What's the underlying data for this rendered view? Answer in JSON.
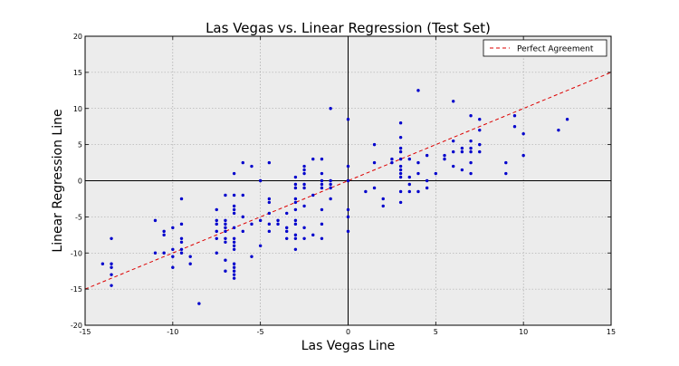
{
  "chart_data": {
    "type": "scatter",
    "title": "Las Vegas vs. Linear Regression (Test Set)",
    "xlabel": "Las Vegas Line",
    "ylabel": "Linear Regression Line",
    "xlim": [
      -15,
      15
    ],
    "ylim": [
      -20,
      20
    ],
    "xticks": [
      -15,
      -10,
      -5,
      0,
      5,
      10,
      15
    ],
    "yticks": [
      -20,
      -15,
      -10,
      -5,
      0,
      5,
      10,
      15,
      20
    ],
    "grid": true,
    "legend": {
      "placement": "top-right",
      "entries": [
        "Perfect Agreement"
      ]
    },
    "colors": {
      "points": "#0000cc",
      "reference_line": "#dd0000",
      "plot_background": "#ececec"
    },
    "reference_line": {
      "name": "Perfect Agreement",
      "x": [
        -15,
        15
      ],
      "y": [
        -15,
        15
      ],
      "style": "dashed"
    },
    "series": [
      {
        "points": [
          [
            -14,
            -11.5
          ],
          [
            -13.5,
            -8
          ],
          [
            -13.5,
            -11.5
          ],
          [
            -13.5,
            -12
          ],
          [
            -13.5,
            -13
          ],
          [
            -13.5,
            -14.5
          ],
          [
            -11,
            -5.5
          ],
          [
            -11,
            -10
          ],
          [
            -10.5,
            -7
          ],
          [
            -10.5,
            -7.5
          ],
          [
            -10.5,
            -10
          ],
          [
            -10,
            -6.5
          ],
          [
            -10,
            -9.5
          ],
          [
            -10,
            -10.5
          ],
          [
            -10,
            -12
          ],
          [
            -9.5,
            -2.5
          ],
          [
            -9.5,
            -6
          ],
          [
            -9.5,
            -8
          ],
          [
            -9.5,
            -8.5
          ],
          [
            -9.5,
            -9.5
          ],
          [
            -9.5,
            -10
          ],
          [
            -9,
            -10.5
          ],
          [
            -9,
            -11.5
          ],
          [
            -8.5,
            -17
          ],
          [
            -7.5,
            -4
          ],
          [
            -7.5,
            -5.5
          ],
          [
            -7.5,
            -6
          ],
          [
            -7.5,
            -7
          ],
          [
            -7.5,
            -8
          ],
          [
            -7.5,
            -10
          ],
          [
            -7,
            -2
          ],
          [
            -7,
            -5.5
          ],
          [
            -7,
            -6
          ],
          [
            -7,
            -6.5
          ],
          [
            -7,
            -7
          ],
          [
            -7,
            -8
          ],
          [
            -7,
            -8.5
          ],
          [
            -7,
            -11
          ],
          [
            -7,
            -12.5
          ],
          [
            -6.5,
            1
          ],
          [
            -6.5,
            -2
          ],
          [
            -6.5,
            -3.5
          ],
          [
            -6.5,
            -4
          ],
          [
            -6.5,
            -4.5
          ],
          [
            -6.5,
            -6.5
          ],
          [
            -6.5,
            -8
          ],
          [
            -6.5,
            -8.5
          ],
          [
            -6.5,
            -9
          ],
          [
            -6.5,
            -9.5
          ],
          [
            -6.5,
            -11.5
          ],
          [
            -6.5,
            -12
          ],
          [
            -6.5,
            -12.5
          ],
          [
            -6.5,
            -13
          ],
          [
            -6.5,
            -13.5
          ],
          [
            -6,
            2.5
          ],
          [
            -6,
            -2
          ],
          [
            -6,
            -5
          ],
          [
            -6,
            -7
          ],
          [
            -5.5,
            2
          ],
          [
            -5.5,
            -6
          ],
          [
            -5.5,
            -10.5
          ],
          [
            -5,
            0
          ],
          [
            -5,
            -5.5
          ],
          [
            -5,
            -9
          ],
          [
            -4.5,
            2.5
          ],
          [
            -4.5,
            -2.5
          ],
          [
            -4.5,
            -3
          ],
          [
            -4.5,
            -4.5
          ],
          [
            -4.5,
            -6
          ],
          [
            -4.5,
            -7
          ],
          [
            -4,
            -5.5
          ],
          [
            -4,
            -6
          ],
          [
            -3.5,
            -4.5
          ],
          [
            -3.5,
            -6.5
          ],
          [
            -3.5,
            -7
          ],
          [
            -3.5,
            -8
          ],
          [
            -3,
            0.5
          ],
          [
            -3,
            -0.5
          ],
          [
            -3,
            -1
          ],
          [
            -3,
            -2.5
          ],
          [
            -3,
            -3
          ],
          [
            -3,
            -4
          ],
          [
            -3,
            -5.5
          ],
          [
            -3,
            -6
          ],
          [
            -3,
            -7.5
          ],
          [
            -3,
            -8
          ],
          [
            -3,
            -9.5
          ],
          [
            -2.5,
            1
          ],
          [
            -2.5,
            1.5
          ],
          [
            -2.5,
            2
          ],
          [
            -2.5,
            -0.5
          ],
          [
            -2.5,
            -1
          ],
          [
            -2.5,
            -3.5
          ],
          [
            -2.5,
            -6.5
          ],
          [
            -2.5,
            -8
          ],
          [
            -2,
            3
          ],
          [
            -2,
            -2
          ],
          [
            -2,
            -7.5
          ],
          [
            -1.5,
            3
          ],
          [
            -1.5,
            1
          ],
          [
            -1.5,
            0
          ],
          [
            -1.5,
            -0.5
          ],
          [
            -1.5,
            -1
          ],
          [
            -1.5,
            -4
          ],
          [
            -1.5,
            -6
          ],
          [
            -1.5,
            -8
          ],
          [
            -1,
            10
          ],
          [
            -1,
            0
          ],
          [
            -1,
            -0.5
          ],
          [
            -1,
            -1
          ],
          [
            -1,
            -2.5
          ],
          [
            0,
            8.5
          ],
          [
            0,
            2
          ],
          [
            0,
            0
          ],
          [
            0,
            -4
          ],
          [
            0,
            -5
          ],
          [
            0,
            -7
          ],
          [
            1,
            -1.5
          ],
          [
            1.5,
            5
          ],
          [
            1.5,
            2.5
          ],
          [
            1.5,
            -1
          ],
          [
            2,
            -2.5
          ],
          [
            2,
            -3.5
          ],
          [
            2.5,
            2.5
          ],
          [
            2.5,
            3
          ],
          [
            3,
            8
          ],
          [
            3,
            6
          ],
          [
            3,
            4.5
          ],
          [
            3,
            4
          ],
          [
            3,
            3
          ],
          [
            3,
            2
          ],
          [
            3,
            1.5
          ],
          [
            3,
            1
          ],
          [
            3,
            0.5
          ],
          [
            3,
            -1.5
          ],
          [
            3,
            -3
          ],
          [
            3.5,
            3
          ],
          [
            3.5,
            0.5
          ],
          [
            3.5,
            -0.5
          ],
          [
            3.5,
            -1.5
          ],
          [
            4,
            12.5
          ],
          [
            4,
            2.5
          ],
          [
            4,
            1
          ],
          [
            4,
            -1.5
          ],
          [
            4.5,
            3.5
          ],
          [
            4.5,
            0
          ],
          [
            4.5,
            -1
          ],
          [
            5,
            1
          ],
          [
            5.5,
            3.5
          ],
          [
            5.5,
            3
          ],
          [
            6,
            11
          ],
          [
            6,
            5.5
          ],
          [
            6,
            4
          ],
          [
            6,
            2
          ],
          [
            6.5,
            4.5
          ],
          [
            6.5,
            4
          ],
          [
            6.5,
            1.5
          ],
          [
            7,
            9
          ],
          [
            7,
            5.5
          ],
          [
            7,
            4.5
          ],
          [
            7,
            4
          ],
          [
            7,
            2.5
          ],
          [
            7,
            1
          ],
          [
            7.5,
            8.5
          ],
          [
            7.5,
            7
          ],
          [
            7.5,
            5
          ],
          [
            7.5,
            4
          ],
          [
            9,
            2.5
          ],
          [
            9,
            1
          ],
          [
            9.5,
            9
          ],
          [
            9.5,
            7.5
          ],
          [
            10,
            6.5
          ],
          [
            10,
            3.5
          ],
          [
            12,
            7
          ],
          [
            12.5,
            8.5
          ]
        ]
      }
    ]
  }
}
